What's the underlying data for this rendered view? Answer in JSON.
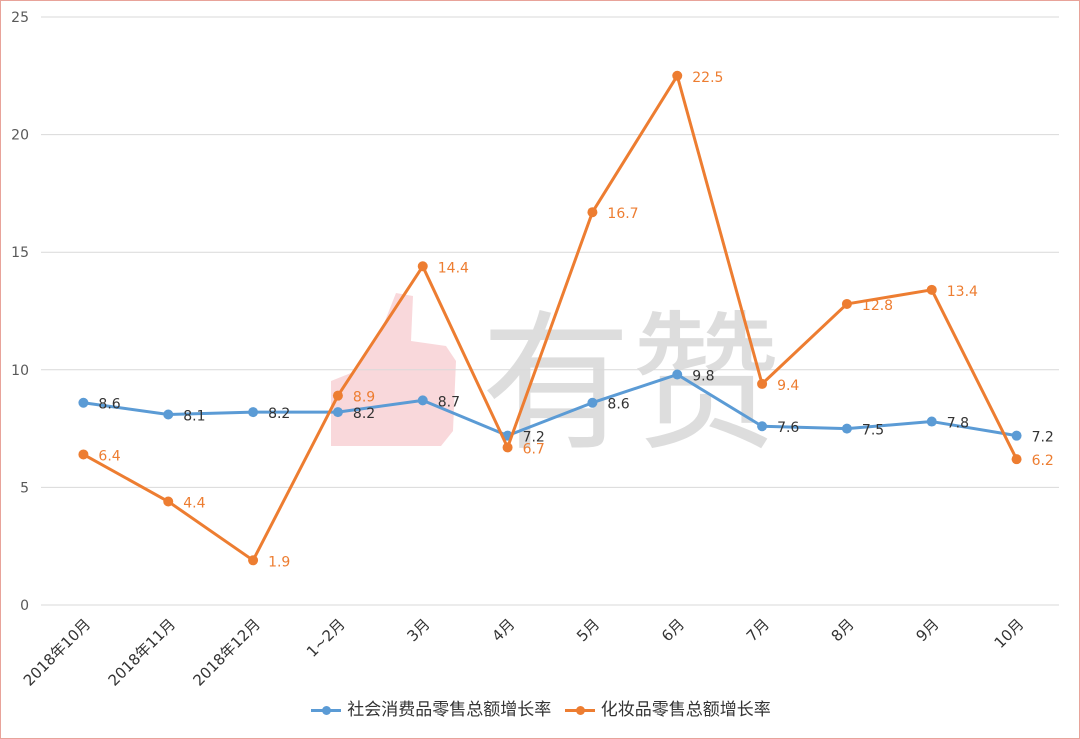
{
  "watermark": "有赞",
  "chart_data": {
    "type": "line",
    "title": "",
    "xlabel": "",
    "ylabel": "",
    "ylim": [
      0,
      25
    ],
    "yticks": [
      0,
      5,
      10,
      15,
      20,
      25
    ],
    "grid": true,
    "legend_position": "bottom",
    "categories": [
      "2018年10月",
      "2018年11月",
      "2018年12月",
      "1~2月",
      "3月",
      "4月",
      "5月",
      "6月",
      "7月",
      "8月",
      "9月",
      "10月"
    ],
    "series": [
      {
        "name": "社会消费品零售总额增长率",
        "color": "#5b9bd5",
        "label_color": "#333333",
        "values": [
          8.6,
          8.1,
          8.2,
          8.2,
          8.7,
          7.2,
          8.6,
          9.8,
          7.6,
          7.5,
          7.8,
          7.2
        ]
      },
      {
        "name": "化妆品零售总额增长率",
        "color": "#ed7d31",
        "label_color": "#ed7d31",
        "values": [
          6.4,
          4.4,
          1.9,
          8.9,
          14.4,
          6.7,
          16.7,
          22.5,
          9.4,
          12.8,
          13.4,
          6.2
        ]
      }
    ]
  }
}
